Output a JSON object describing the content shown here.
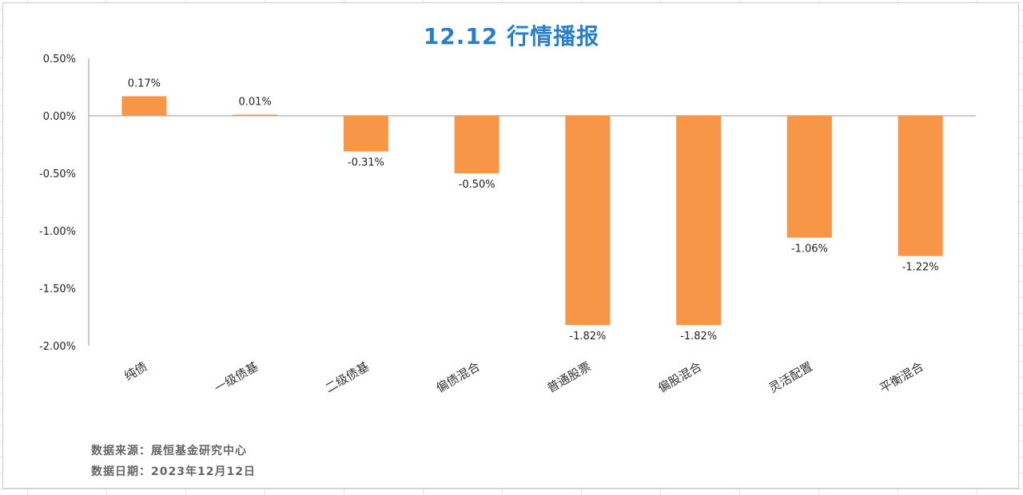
{
  "chart_data": {
    "type": "bar",
    "title": "12.12 行情播报",
    "categories": [
      "纯债",
      "一级债基",
      "二级债基",
      "偏债混合",
      "普通股票",
      "偏股混合",
      "灵活配置",
      "平衡混合"
    ],
    "values": [
      0.17,
      0.01,
      -0.31,
      -0.5,
      -1.82,
      -1.82,
      -1.06,
      -1.22
    ],
    "data_labels": [
      "0.17%",
      "0.01%",
      "-0.31%",
      "-0.50%",
      "-1.82%",
      "-1.82%",
      "-1.06%",
      "-1.22%"
    ],
    "ylim": [
      -2.0,
      0.5
    ],
    "y_ticks": [
      0.5,
      0.0,
      -0.5,
      -1.0,
      -1.5,
      -2.0
    ],
    "y_tick_labels": [
      "0.50%",
      "0.00%",
      "-0.50%",
      "-1.00%",
      "-1.50%",
      "-2.00%"
    ],
    "grid": false,
    "bar_color": "#f79646"
  },
  "footnotes": {
    "source": "数据来源：展恒基金研究中心",
    "date": "数据日期：2023年12月12日"
  },
  "colors": {
    "title": "#2a7fc9"
  }
}
